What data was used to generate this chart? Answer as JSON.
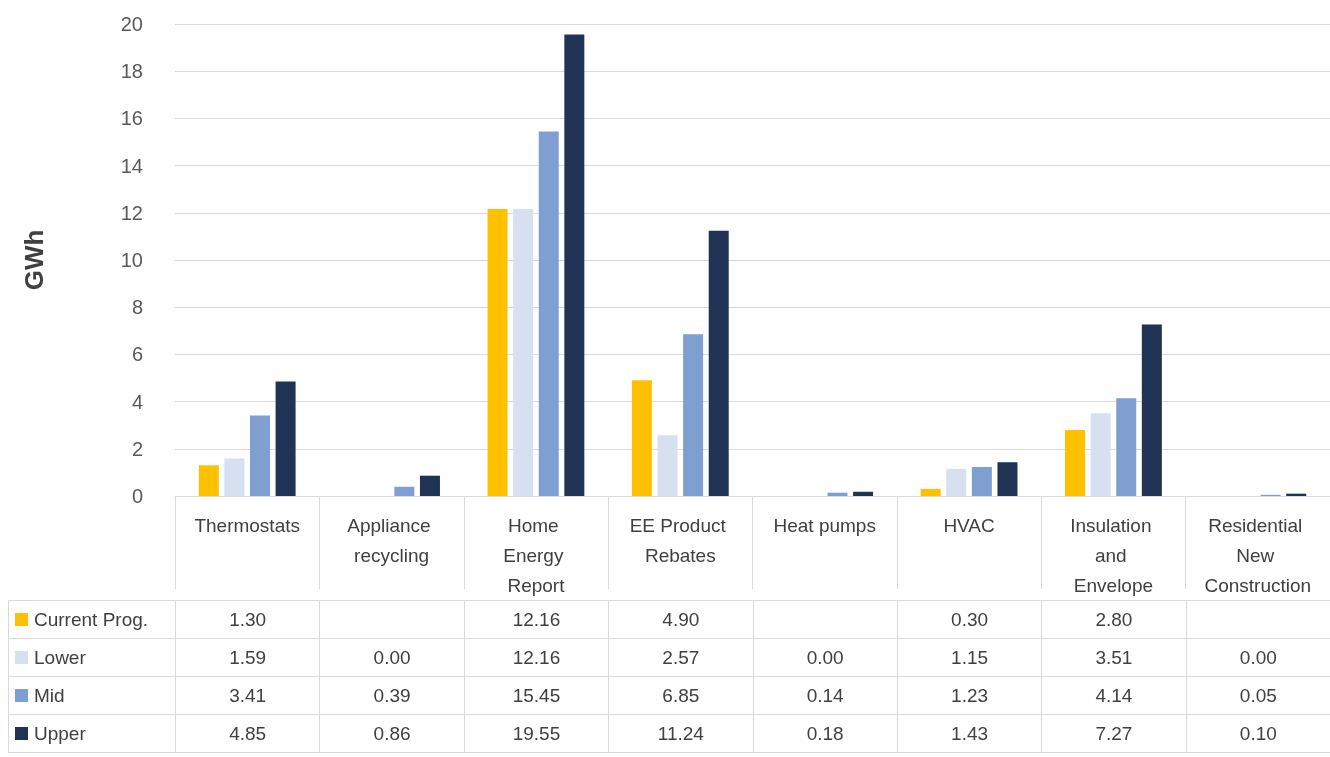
{
  "chart_data": {
    "type": "bar",
    "ylabel": "GWh",
    "categories": [
      "Thermostats",
      "Appliance recycling",
      "Home Energy Report",
      "EE Product Rebates",
      "Heat pumps",
      "HVAC",
      "Insulation and Envelope",
      "Residential New Construction"
    ],
    "series": [
      {
        "name": "Current Prog.",
        "color": "#ffc000",
        "values": [
          1.3,
          null,
          12.16,
          4.9,
          null,
          0.3,
          2.8,
          null
        ],
        "value_labels": [
          "1.30",
          null,
          "12.16",
          "4.90",
          null,
          "0.30",
          "2.80",
          null
        ]
      },
      {
        "name": "Lower",
        "color": "#d6e0f0",
        "values": [
          1.59,
          0.0,
          12.16,
          2.57,
          0.0,
          1.15,
          3.51,
          0.0
        ],
        "value_labels": [
          "1.59",
          "0.00",
          "12.16",
          "2.57",
          "0.00",
          "1.15",
          "3.51",
          "0.00"
        ]
      },
      {
        "name": "Mid",
        "color": "#7f9fd0",
        "values": [
          3.41,
          0.39,
          15.45,
          6.85,
          0.14,
          1.23,
          4.14,
          0.05
        ],
        "value_labels": [
          "3.41",
          "0.39",
          "15.45",
          "6.85",
          "0.14",
          "1.23",
          "4.14",
          "0.05"
        ]
      },
      {
        "name": "Upper",
        "color": "#203354",
        "values": [
          4.85,
          0.86,
          19.55,
          11.24,
          0.18,
          1.43,
          7.27,
          0.1
        ],
        "value_labels": [
          "4.85",
          "0.86",
          "19.55",
          "11.24",
          "0.18",
          "1.43",
          "7.27",
          "0.10"
        ]
      }
    ],
    "ylim": [
      0,
      20
    ],
    "yticks": [
      0,
      2,
      4,
      6,
      8,
      10,
      12,
      14,
      16,
      18,
      20
    ],
    "grid": "y",
    "legend": "bottom"
  }
}
